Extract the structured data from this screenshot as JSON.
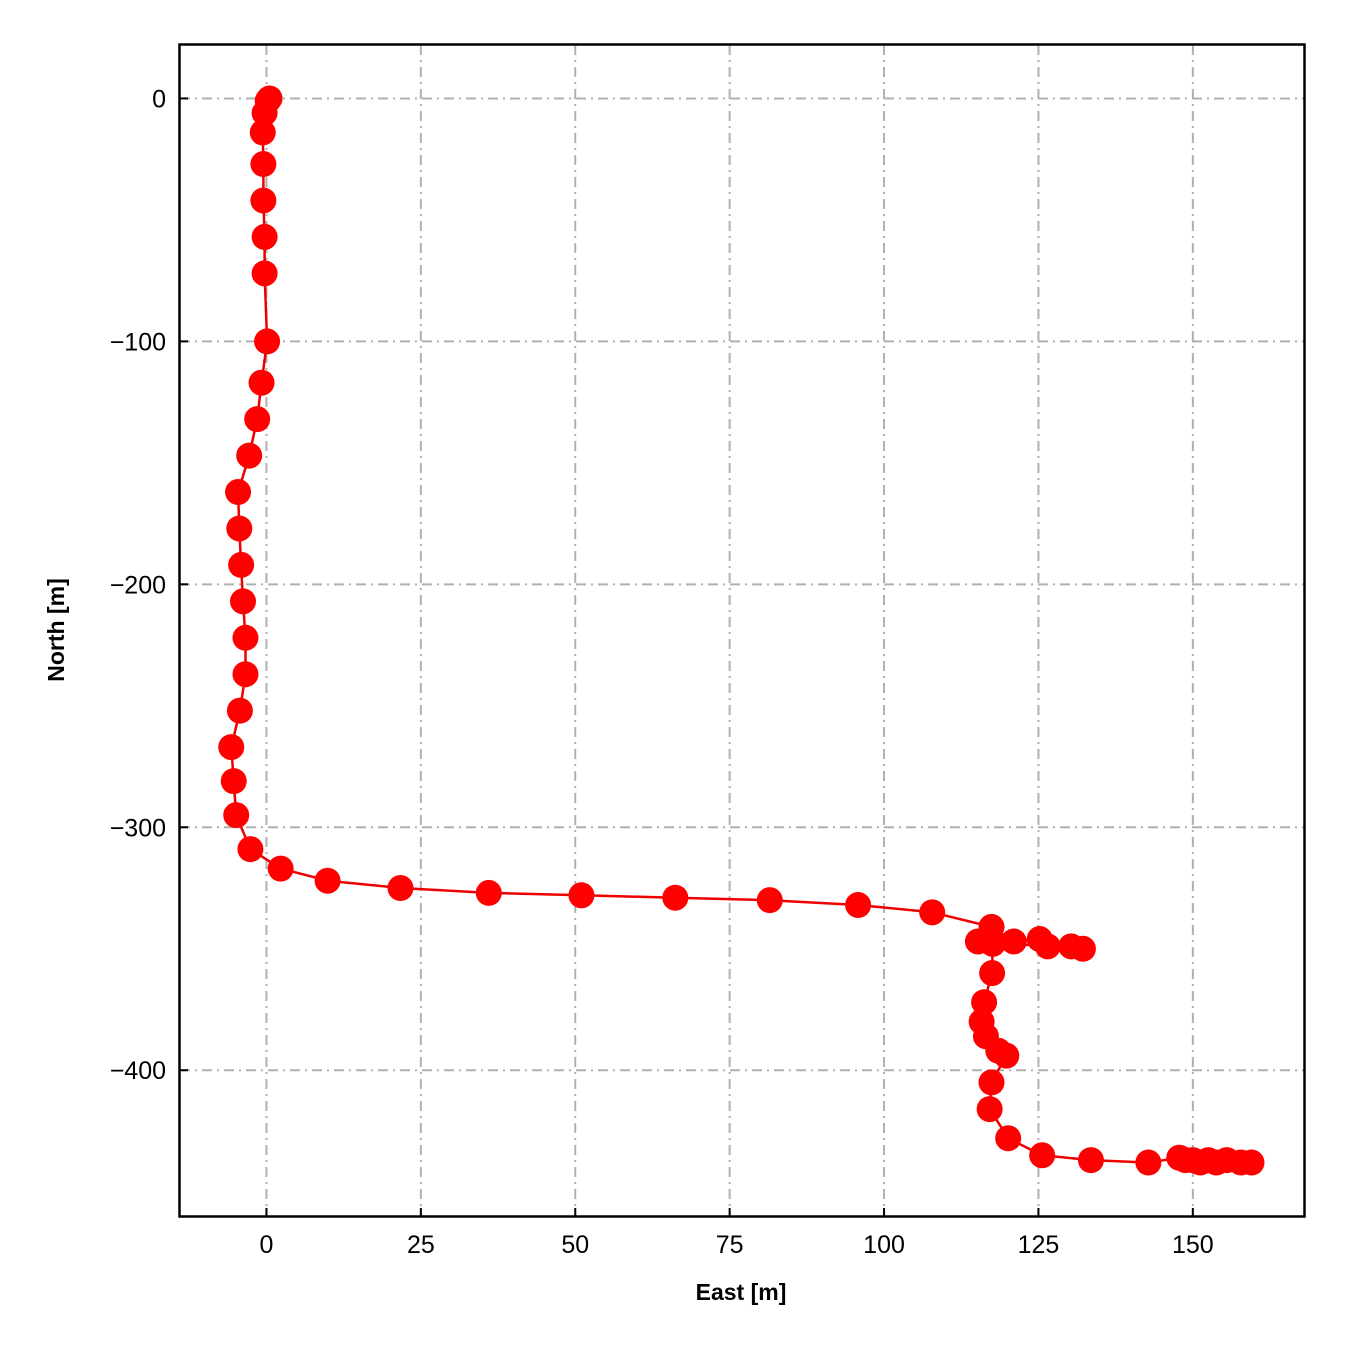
{
  "chart_data": {
    "type": "line",
    "title": "",
    "xlabel": "East [m]",
    "ylabel": "North [m]",
    "xlim": [
      -14,
      168
    ],
    "ylim": [
      -460,
      22
    ],
    "xticks": [
      0,
      25,
      50,
      75,
      100,
      125,
      150
    ],
    "yticks": [
      0,
      -100,
      -200,
      -300,
      -400
    ],
    "grid": true,
    "line_color": "#ee0000",
    "marker_color": "#ff0000",
    "grid_color": "#b0b0b0",
    "series": [
      {
        "x": [
          0.5,
          0.2,
          -0.3,
          -0.6,
          -0.5,
          -0.5,
          -0.3,
          -0.3,
          0.1,
          -0.8,
          -1.5,
          -2.8,
          -4.6,
          -4.4,
          -4.1,
          -3.8,
          -3.4,
          -3.4,
          -4.3,
          -5.7,
          -5.3,
          -4.9,
          -2.6,
          2.3,
          9.9,
          21.7,
          36.0,
          51.0,
          66.2,
          81.5,
          95.8,
          107.8,
          117.4,
          121.0,
          125.2,
          126.5,
          130.3,
          132.2,
          115.2,
          117.6,
          117.5,
          116.2,
          115.8,
          116.5,
          118.5,
          119.8,
          117.4,
          117.1,
          120.1,
          125.6,
          133.5,
          142.8,
          147.8,
          148.8,
          150.0,
          151.2,
          152.5,
          153.8,
          155.5,
          157.8,
          159.5
        ],
        "y": [
          0,
          -1,
          -6,
          -14,
          -27,
          -42,
          -57,
          -72,
          -100,
          -117,
          -132,
          -147,
          -162,
          -177,
          -192,
          -207,
          -222,
          -237,
          -252,
          -267,
          -281,
          -295,
          -309,
          -317,
          -322,
          -325,
          -327,
          -328,
          -329,
          -330,
          -332,
          -335,
          -341,
          -347,
          -346,
          -349,
          -349,
          -350,
          -347,
          -348,
          -360,
          -372,
          -380,
          -386,
          -392,
          -394,
          -405,
          -416,
          -428,
          -435,
          -437,
          -438,
          -436,
          -437,
          -437,
          -438,
          -437,
          -438,
          -437,
          -438,
          -438
        ]
      }
    ]
  }
}
